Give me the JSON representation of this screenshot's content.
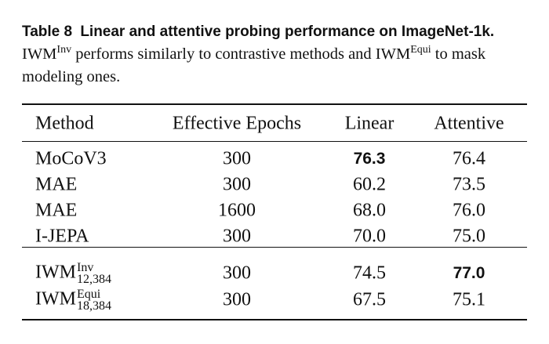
{
  "caption": {
    "label": "Table 8",
    "title": "Linear and attentive probing performance on ImageNet-1k.",
    "body": [
      "IWM",
      "Inv",
      " performs similarly to contrastive methods and ",
      "IWM",
      "Equi",
      " to mask modeling ones."
    ]
  },
  "table": {
    "header": [
      "Method",
      "Effective Epochs",
      "Linear",
      "Attentive"
    ],
    "groups": [
      [
        {
          "cells": [
            "MoCoV3",
            "300",
            "76.3",
            "76.4"
          ],
          "bold": 2
        },
        {
          "cells": [
            "MAE",
            "300",
            "60.2",
            "73.5"
          ]
        },
        {
          "cells": [
            "MAE",
            "1600",
            "68.0",
            "76.0"
          ]
        },
        {
          "cells": [
            "I-JEPA",
            "300",
            "70.0",
            "75.0"
          ]
        }
      ],
      [
        {
          "cells": [
            {
              "base": "IWM",
              "sup": "Inv",
              "sub": "12,384"
            },
            "300",
            "74.5",
            "77.0"
          ],
          "bold": 3
        },
        {
          "cells": [
            {
              "base": "IWM",
              "sup": "Equi",
              "sub": "18,384"
            },
            "300",
            "67.5",
            "75.1"
          ]
        }
      ]
    ]
  }
}
